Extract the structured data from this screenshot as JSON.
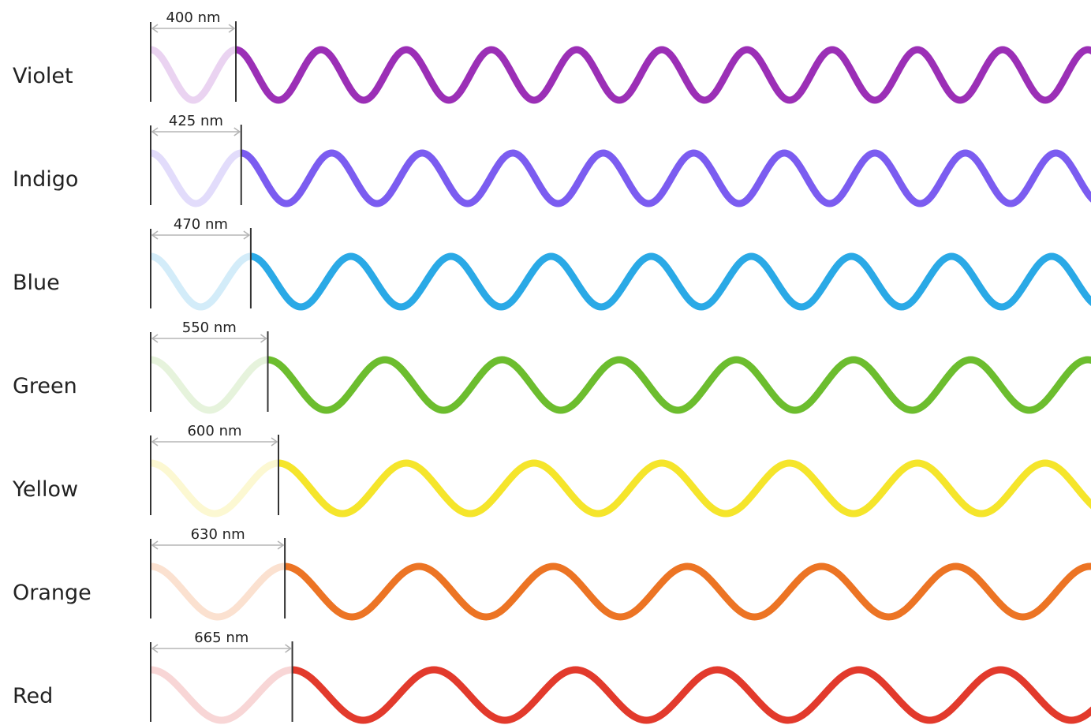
{
  "rows": [
    {
      "label": "Violet",
      "wavelength": 400,
      "wavelength_label": "400 nm",
      "color": "#9b2fb6",
      "faded_color": "#ead3f1"
    },
    {
      "label": "Indigo",
      "wavelength": 425,
      "wavelength_label": "425 nm",
      "color": "#7b5cf0",
      "faded_color": "#e2dcfb"
    },
    {
      "label": "Blue",
      "wavelength": 470,
      "wavelength_label": "470 nm",
      "color": "#2aa9e6",
      "faded_color": "#d3ecf9"
    },
    {
      "label": "Green",
      "wavelength": 550,
      "wavelength_label": "550 nm",
      "color": "#6cbd2e",
      "faded_color": "#e6f3dc"
    },
    {
      "label": "Yellow",
      "wavelength": 600,
      "wavelength_label": "600 nm",
      "color": "#f5e52b",
      "faded_color": "#fcf8d2"
    },
    {
      "label": "Orange",
      "wavelength": 630,
      "wavelength_label": "630 nm",
      "color": "#ec7424",
      "faded_color": "#fbe1d0"
    },
    {
      "label": "Red",
      "wavelength": 665,
      "wavelength_label": "665 nm",
      "color": "#e23a2c",
      "faded_color": "#f8d6d6"
    }
  ]
}
